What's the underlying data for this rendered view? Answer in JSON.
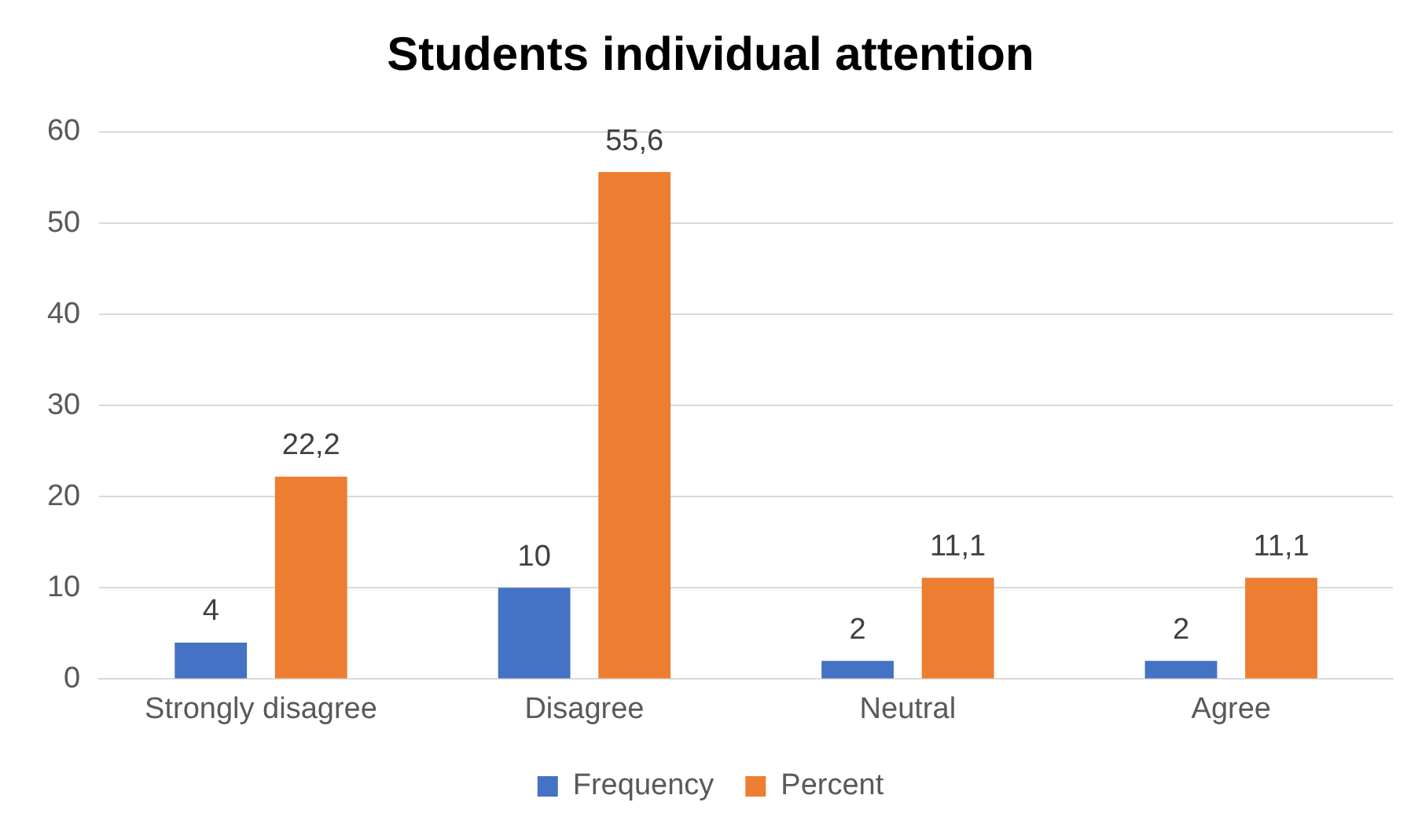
{
  "chart_data": {
    "type": "bar",
    "title": "Students individual attention",
    "categories": [
      "Strongly disagree",
      "Disagree",
      "Neutral",
      "Agree"
    ],
    "series": [
      {
        "name": "Frequency",
        "color": "#4472c4",
        "values": [
          4,
          10,
          2,
          2
        ],
        "value_labels": [
          "4",
          "10",
          "2",
          "2"
        ]
      },
      {
        "name": "Percent",
        "color": "#ed7d31",
        "values": [
          22.2,
          55.6,
          11.1,
          11.1
        ],
        "value_labels": [
          "22,2",
          "55,6",
          "11,1",
          "11,1"
        ]
      }
    ],
    "ylim": [
      0,
      60
    ],
    "yticks": [
      0,
      10,
      20,
      30,
      40,
      50,
      60
    ],
    "grid": "y",
    "legend": "bottom"
  }
}
